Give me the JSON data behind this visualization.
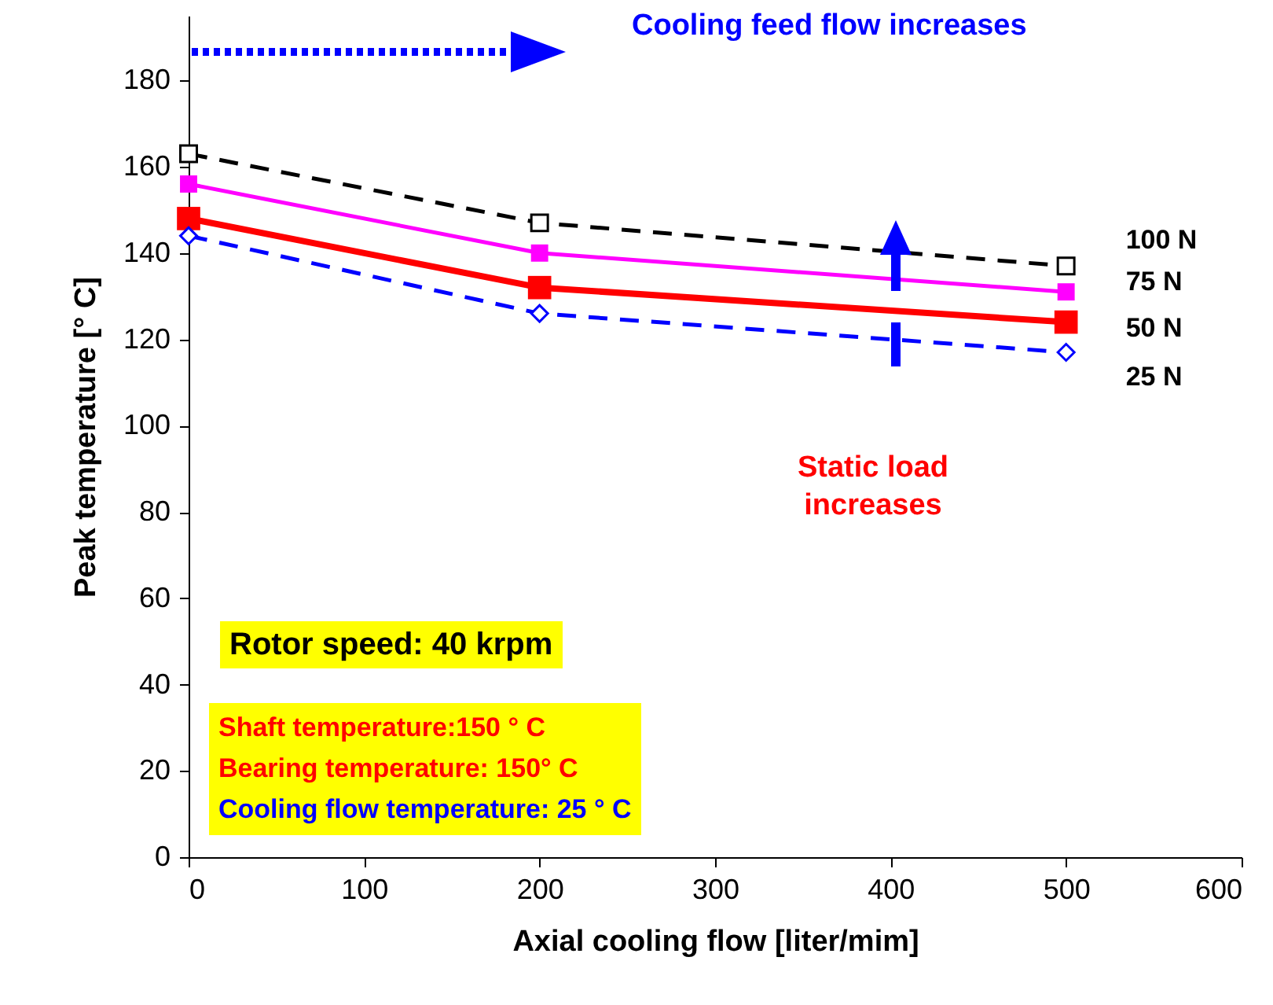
{
  "chart_data": {
    "type": "line",
    "xlabel": "Axial cooling flow [liter/mim]",
    "ylabel": "Peak temperature [° C]",
    "x": [
      0,
      200,
      500
    ],
    "series": [
      {
        "name": "100 N",
        "color": "#000000",
        "values": [
          163,
          147,
          137
        ],
        "marker": "square",
        "line_style": "dashed"
      },
      {
        "name": "75 N",
        "color": "#ff00ff",
        "values": [
          156,
          140,
          131
        ],
        "marker": "square",
        "line_style": "solid"
      },
      {
        "name": "50 N",
        "color": "#ff0000",
        "values": [
          148,
          132,
          124
        ],
        "marker": "square",
        "line_style": "solid"
      },
      {
        "name": "25 N",
        "color": "#0000ff",
        "values": [
          144,
          126,
          117
        ],
        "marker": "diamond",
        "line_style": "dashed"
      }
    ],
    "xlim": [
      0,
      600
    ],
    "xticks": [
      0,
      100,
      200,
      300,
      400,
      500,
      600
    ],
    "ylim": [
      0,
      195
    ],
    "yticks": [
      0,
      20,
      40,
      60,
      80,
      100,
      120,
      140,
      160,
      180
    ],
    "grid": false,
    "annotations": [
      "Cooling feed flow increases",
      "Static load increases",
      "Rotor speed: 40 krpm",
      "Shaft temperature:150 ° C",
      "Bearing temperature: 150° C",
      "Cooling flow temperature: 25 ° C"
    ]
  }
}
